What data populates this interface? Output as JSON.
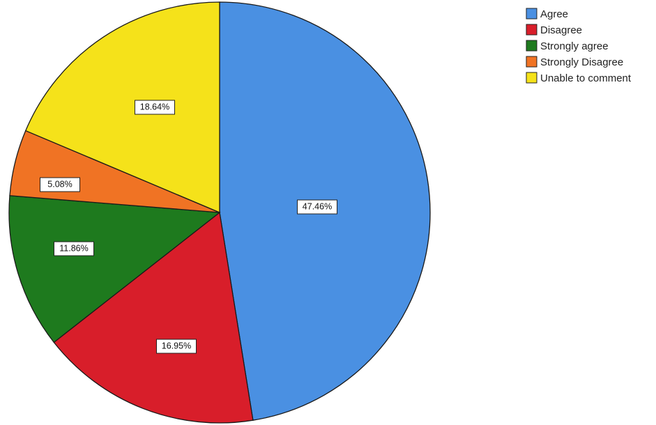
{
  "chart_data": {
    "type": "pie",
    "title": "",
    "start_angle_deg": 0,
    "direction": "clockwise",
    "slices": [
      {
        "label": "Agree",
        "value": 47.46,
        "display": "47.46%",
        "color": "#4a90e2"
      },
      {
        "label": "Disagree",
        "value": 16.95,
        "display": "16.95%",
        "color": "#d81e2a"
      },
      {
        "label": "Strongly agree",
        "value": 11.86,
        "display": "11.86%",
        "color": "#1e7a1e"
      },
      {
        "label": "Strongly Disagree",
        "value": 5.08,
        "display": "5.08%",
        "color": "#f07324"
      },
      {
        "label": "Unable to comment",
        "value": 18.64,
        "display": "18.64%",
        "color": "#f5e21a"
      }
    ],
    "legend": {
      "placement": "top-right",
      "entries": [
        "Agree",
        "Disagree",
        "Strongly agree",
        "Strongly Disagree",
        "Unable to comment"
      ]
    }
  }
}
